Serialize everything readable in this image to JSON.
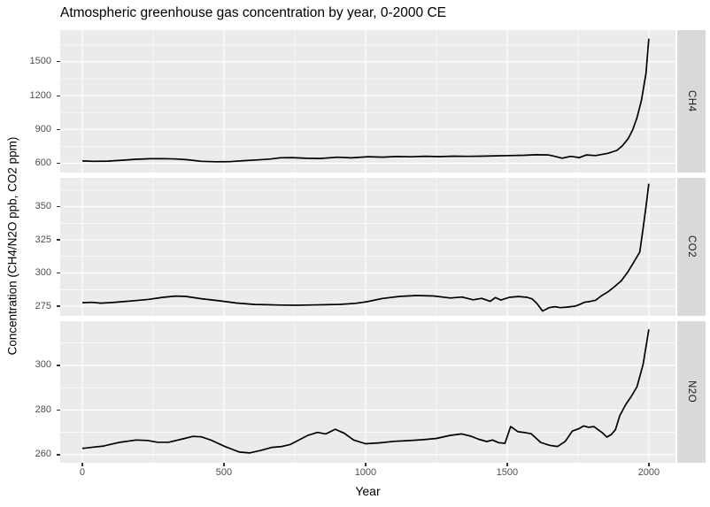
{
  "title": "Atmospheric greenhouse gas concentration by year, 0-2000 CE",
  "colors": {
    "panel_background": "#ebebeb",
    "strip_background": "#d9d9d9",
    "gridline": "#ffffff",
    "line": "#000000",
    "tick_text": "#4d4d4d",
    "title_text": "#000000"
  },
  "chart_data": {
    "type": "line",
    "title": "Atmospheric greenhouse gas concentration by year, 0-2000 CE",
    "xlabel": "Year",
    "ylabel": "Concentration (CH4/N2O ppb, CO2 ppm)",
    "legend": "none",
    "grid": "major-and-minor-white-on-grey",
    "xlim": [
      -78,
      2094
    ],
    "xticks": [
      0,
      500,
      1000,
      1500,
      2000
    ],
    "xminor": [
      250,
      750,
      1250,
      1750
    ],
    "facets": [
      {
        "label": "CH4",
        "units": "ppb",
        "ylim": [
          517.5,
          1782
        ],
        "yticks": [
          600,
          900,
          1200,
          1500
        ],
        "yminor": [
          750,
          1050,
          1350,
          1650
        ],
        "points": [
          [
            0,
            620
          ],
          [
            40,
            617
          ],
          [
            90,
            619
          ],
          [
            140,
            627
          ],
          [
            190,
            635
          ],
          [
            240,
            640
          ],
          [
            290,
            641
          ],
          [
            330,
            638
          ],
          [
            370,
            631
          ],
          [
            420,
            617
          ],
          [
            470,
            613
          ],
          [
            520,
            614
          ],
          [
            570,
            623
          ],
          [
            620,
            630
          ],
          [
            665,
            638
          ],
          [
            700,
            649
          ],
          [
            740,
            650
          ],
          [
            790,
            644
          ],
          [
            840,
            642
          ],
          [
            900,
            653
          ],
          [
            950,
            648
          ],
          [
            1010,
            658
          ],
          [
            1060,
            654
          ],
          [
            1110,
            660
          ],
          [
            1160,
            657
          ],
          [
            1210,
            662
          ],
          [
            1260,
            659
          ],
          [
            1310,
            663
          ],
          [
            1360,
            661
          ],
          [
            1410,
            663
          ],
          [
            1460,
            666
          ],
          [
            1510,
            668
          ],
          [
            1560,
            671
          ],
          [
            1600,
            675
          ],
          [
            1645,
            674
          ],
          [
            1668,
            661
          ],
          [
            1694,
            645
          ],
          [
            1724,
            661
          ],
          [
            1755,
            650
          ],
          [
            1780,
            674
          ],
          [
            1812,
            668
          ],
          [
            1855,
            688
          ],
          [
            1887,
            714
          ],
          [
            1906,
            753
          ],
          [
            1927,
            818
          ],
          [
            1943,
            898
          ],
          [
            1958,
            1003
          ],
          [
            1974,
            1160
          ],
          [
            1990,
            1398
          ],
          [
            2000,
            1706
          ]
        ]
      },
      {
        "label": "CO2",
        "units": "ppm",
        "ylim": [
          267.7,
          371.7
        ],
        "yticks": [
          275,
          300,
          325,
          350
        ],
        "yminor": [
          287.5,
          312.5,
          337.5,
          362.5
        ],
        "points": [
          [
            0,
            277.6
          ],
          [
            35,
            277.9
          ],
          [
            65,
            277.3
          ],
          [
            100,
            277.7
          ],
          [
            135,
            278.3
          ],
          [
            185,
            279.2
          ],
          [
            235,
            280.2
          ],
          [
            285,
            281.7
          ],
          [
            330,
            282.6
          ],
          [
            365,
            282.4
          ],
          [
            420,
            280.6
          ],
          [
            485,
            279.0
          ],
          [
            545,
            277.4
          ],
          [
            610,
            276.3
          ],
          [
            650,
            276.1
          ],
          [
            700,
            275.8
          ],
          [
            755,
            275.7
          ],
          [
            810,
            275.9
          ],
          [
            860,
            276.1
          ],
          [
            910,
            276.4
          ],
          [
            965,
            277.2
          ],
          [
            1005,
            278.4
          ],
          [
            1060,
            280.8
          ],
          [
            1120,
            282.4
          ],
          [
            1180,
            283.0
          ],
          [
            1240,
            282.7
          ],
          [
            1300,
            281.2
          ],
          [
            1340,
            281.9
          ],
          [
            1380,
            279.8
          ],
          [
            1410,
            280.9
          ],
          [
            1440,
            278.6
          ],
          [
            1458,
            281.5
          ],
          [
            1478,
            279.6
          ],
          [
            1508,
            281.7
          ],
          [
            1540,
            282.3
          ],
          [
            1570,
            281.7
          ],
          [
            1588,
            280.5
          ],
          [
            1605,
            277.0
          ],
          [
            1625,
            271.4
          ],
          [
            1648,
            273.9
          ],
          [
            1668,
            274.6
          ],
          [
            1688,
            273.9
          ],
          [
            1710,
            274.3
          ],
          [
            1740,
            275.0
          ],
          [
            1756,
            276.3
          ],
          [
            1772,
            277.9
          ],
          [
            1794,
            278.6
          ],
          [
            1812,
            279.5
          ],
          [
            1834,
            283.0
          ],
          [
            1856,
            285.8
          ],
          [
            1875,
            289.0
          ],
          [
            1903,
            294.2
          ],
          [
            1925,
            300.5
          ],
          [
            1945,
            307.5
          ],
          [
            1968,
            315.8
          ],
          [
            1980,
            334.0
          ],
          [
            1990,
            350.0
          ],
          [
            2000,
            367.3
          ]
        ]
      },
      {
        "label": "N2O",
        "units": "ppb",
        "ylim": [
          256.4,
          319.8
        ],
        "yticks": [
          260,
          280,
          300
        ],
        "yminor": [
          270,
          290,
          310
        ],
        "points": [
          [
            0,
            262.8
          ],
          [
            40,
            263.4
          ],
          [
            75,
            263.9
          ],
          [
            130,
            265.5
          ],
          [
            190,
            266.6
          ],
          [
            230,
            266.4
          ],
          [
            265,
            265.6
          ],
          [
            305,
            265.6
          ],
          [
            355,
            267.1
          ],
          [
            390,
            268.2
          ],
          [
            420,
            268.0
          ],
          [
            455,
            266.5
          ],
          [
            505,
            263.6
          ],
          [
            555,
            261.2
          ],
          [
            590,
            260.8
          ],
          [
            630,
            261.9
          ],
          [
            670,
            263.3
          ],
          [
            705,
            263.7
          ],
          [
            735,
            264.6
          ],
          [
            765,
            266.6
          ],
          [
            795,
            268.6
          ],
          [
            830,
            270.0
          ],
          [
            860,
            269.3
          ],
          [
            893,
            271.4
          ],
          [
            925,
            269.6
          ],
          [
            958,
            266.6
          ],
          [
            1000,
            264.9
          ],
          [
            1050,
            265.3
          ],
          [
            1100,
            266.0
          ],
          [
            1150,
            266.3
          ],
          [
            1200,
            266.7
          ],
          [
            1250,
            267.3
          ],
          [
            1300,
            268.7
          ],
          [
            1340,
            269.3
          ],
          [
            1372,
            268.3
          ],
          [
            1400,
            266.9
          ],
          [
            1428,
            265.9
          ],
          [
            1448,
            266.6
          ],
          [
            1470,
            265.4
          ],
          [
            1492,
            265.1
          ],
          [
            1512,
            272.6
          ],
          [
            1538,
            270.3
          ],
          [
            1562,
            269.9
          ],
          [
            1585,
            269.4
          ],
          [
            1618,
            265.5
          ],
          [
            1650,
            264.2
          ],
          [
            1678,
            263.7
          ],
          [
            1705,
            266.0
          ],
          [
            1730,
            270.6
          ],
          [
            1752,
            271.6
          ],
          [
            1770,
            272.9
          ],
          [
            1788,
            272.3
          ],
          [
            1806,
            272.6
          ],
          [
            1835,
            269.9
          ],
          [
            1852,
            267.9
          ],
          [
            1868,
            269.1
          ],
          [
            1882,
            271.2
          ],
          [
            1897,
            277.4
          ],
          [
            1918,
            282.4
          ],
          [
            1938,
            286.1
          ],
          [
            1958,
            290.4
          ],
          [
            1980,
            300.6
          ],
          [
            2000,
            316.1
          ]
        ]
      }
    ]
  }
}
